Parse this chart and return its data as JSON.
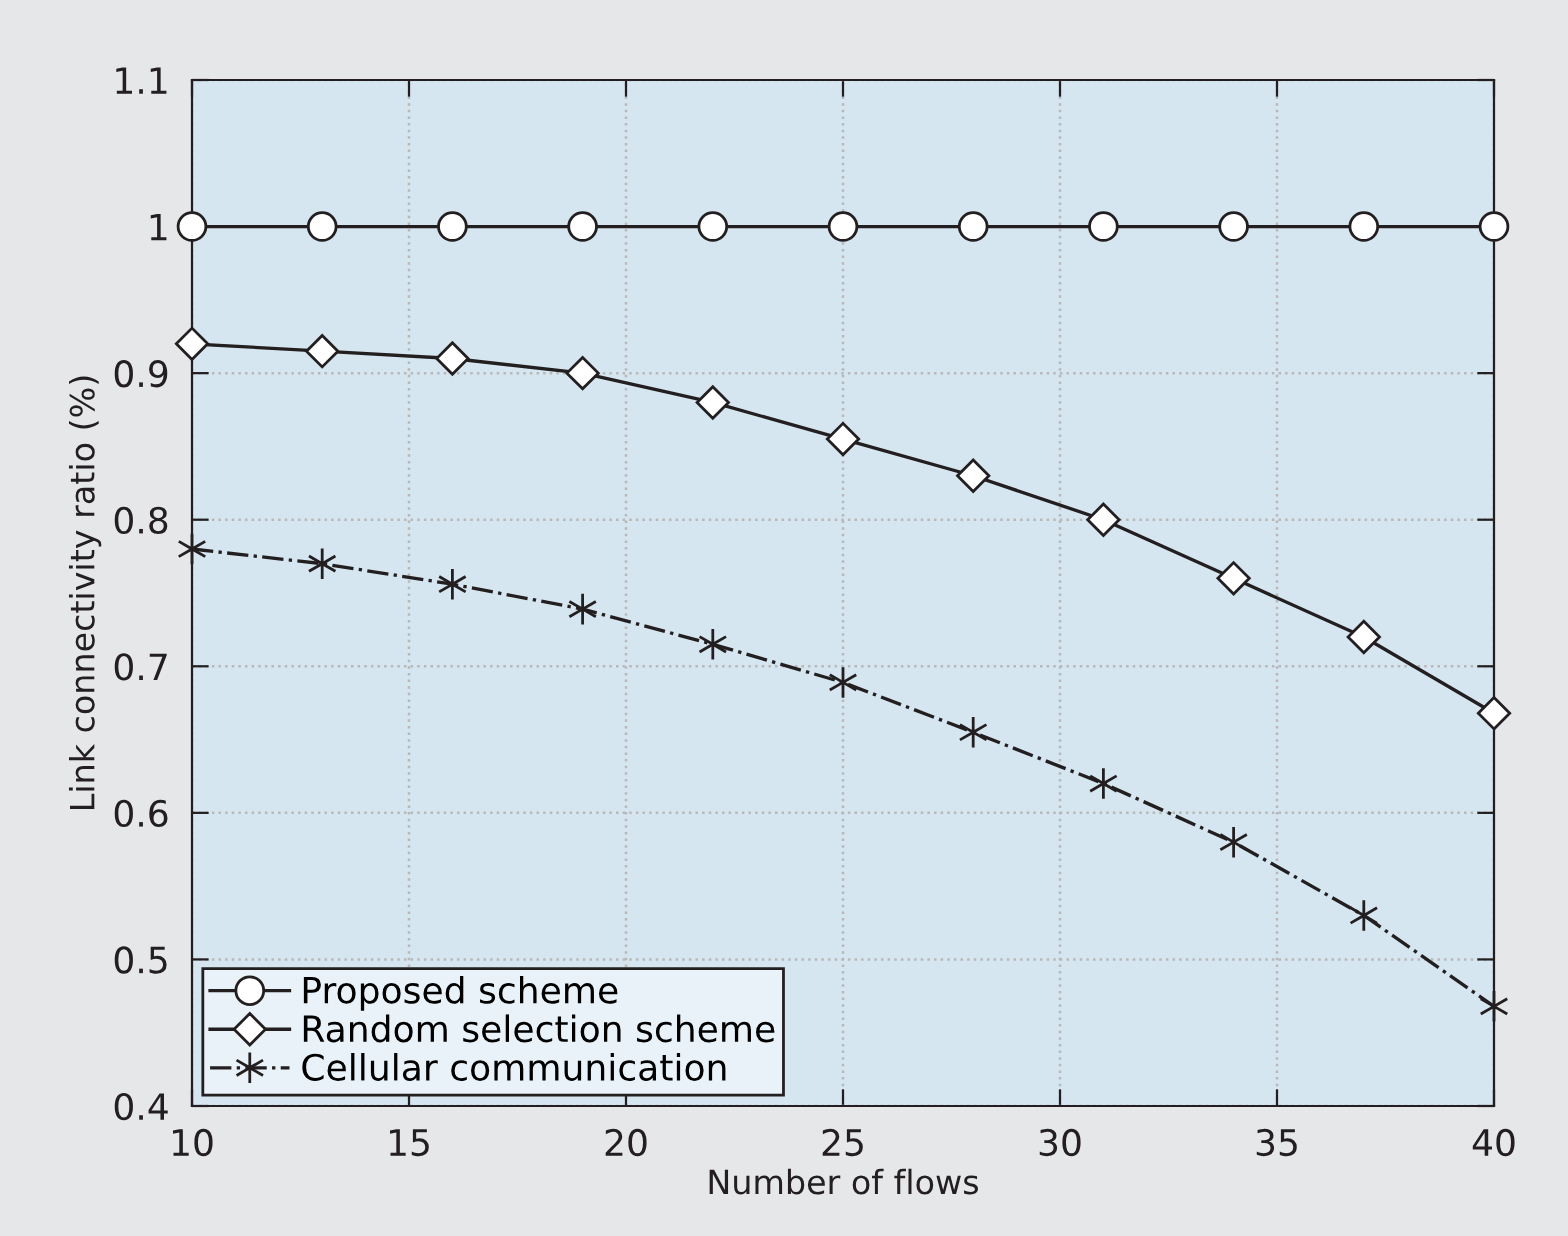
{
  "chart_data": {
    "type": "line",
    "xlabel": "Number of flows",
    "ylabel": "Link connectivity ratio (%)",
    "x": [
      10,
      13,
      16,
      19,
      22,
      25,
      28,
      31,
      34,
      37,
      40
    ],
    "series": [
      {
        "name": "Proposed scheme",
        "color": "#231f20",
        "marker": "circle",
        "line_style": "solid",
        "values": [
          1,
          1,
          1,
          1,
          1,
          1,
          1,
          1,
          1,
          1,
          1
        ]
      },
      {
        "name": "Random selection scheme",
        "color": "#231f20",
        "marker": "diamond",
        "line_style": "solid",
        "values": [
          0.92,
          0.915,
          0.91,
          0.9,
          0.88,
          0.855,
          0.83,
          0.8,
          0.76,
          0.72,
          0.668
        ]
      },
      {
        "name": "Cellular communication",
        "color": "#231f20",
        "marker": "cross",
        "line_style": "dashdot",
        "values": [
          0.78,
          0.77,
          0.756,
          0.739,
          0.715,
          0.689,
          0.655,
          0.62,
          0.58,
          0.53,
          0.468
        ]
      }
    ],
    "xlim": [
      10,
      40
    ],
    "xticks": [
      10,
      15,
      20,
      25,
      30,
      35,
      40
    ],
    "ylim": [
      0.4,
      1.1
    ],
    "yticks": [
      0.4,
      0.5,
      0.6,
      0.7,
      0.8,
      0.9,
      1,
      1.1
    ],
    "grid": true,
    "legend": "bottom left"
  }
}
